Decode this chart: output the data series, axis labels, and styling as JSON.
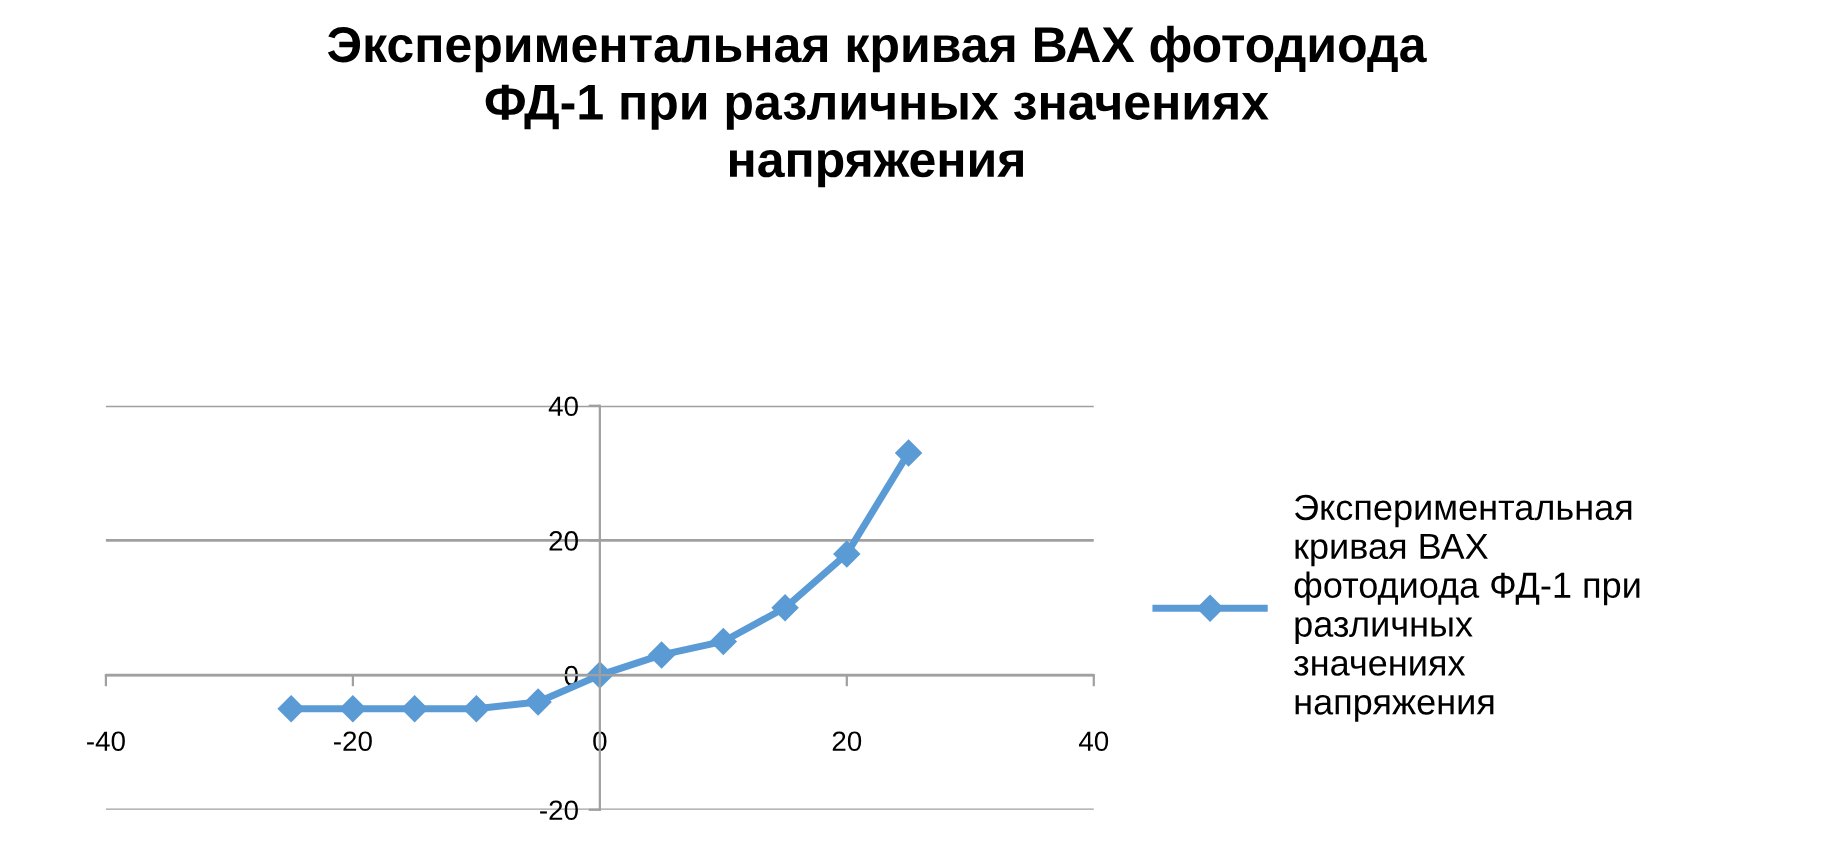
{
  "chart_data": {
    "type": "line",
    "title": "Экспериментальная кривая ВАХ фотодиода\nФД-1 при различных значениях\nнапряжения",
    "series": [
      {
        "name": "Экспериментальная\nкривая ВАХ\nфотодиода ФД-1 при\nразличных\nзначениях\nнапряжения",
        "color": "#5b9bd5",
        "x": [
          -25,
          -20,
          -15,
          -10,
          -5,
          0,
          5,
          10,
          15,
          20,
          25
        ],
        "values": [
          -5,
          -5,
          -5,
          -5,
          -4,
          0,
          3,
          5,
          10,
          18,
          33
        ]
      }
    ],
    "xlim": [
      -40,
      40
    ],
    "xticks": [
      -40,
      -20,
      0,
      20,
      40
    ],
    "ylim": [
      -20,
      40
    ],
    "yticks": [
      -20,
      0,
      20,
      40
    ],
    "grid": "y",
    "legend": "right",
    "marker": "diamond",
    "line_style": "solid"
  }
}
